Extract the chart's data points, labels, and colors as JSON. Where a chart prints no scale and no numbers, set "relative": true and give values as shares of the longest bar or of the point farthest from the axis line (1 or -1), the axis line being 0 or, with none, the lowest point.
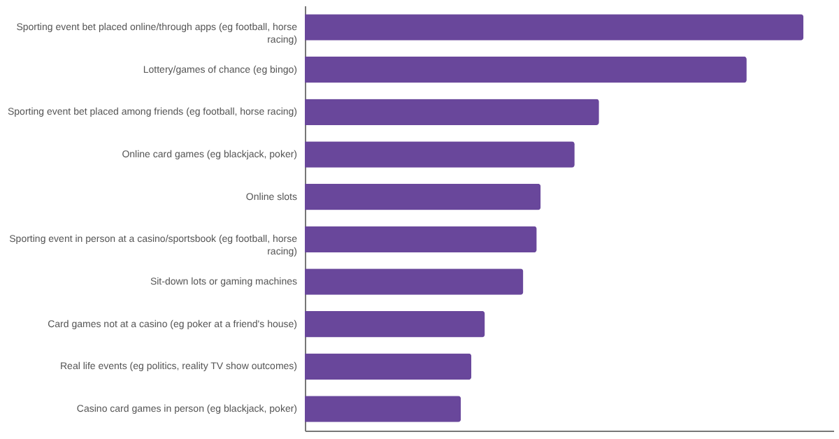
{
  "chart_data": {
    "type": "bar",
    "orientation": "horizontal",
    "relative": true,
    "categories": [
      "Sporting event bet placed online/through apps (eg football, horse racing)",
      "Lottery/games of chance (eg bingo)",
      "Sporting event bet placed among friends (eg football, horse racing)",
      "Online card games (eg blackjack, poker)",
      "Online slots",
      "Sporting event in person at a casino/sportsbook (eg football, horse racing)",
      "Sit-down lots or gaming machines",
      "Card games not at a casino (eg poker at a friend's house)",
      "Real life events (eg politics, reality TV show outcomes)",
      "Casino card games in person (eg blackjack, poker)"
    ],
    "values": [
      1,
      0.886,
      0.59,
      0.541,
      0.473,
      0.465,
      0.438,
      0.361,
      0.334,
      0.313
    ],
    "color": "#69479b"
  }
}
